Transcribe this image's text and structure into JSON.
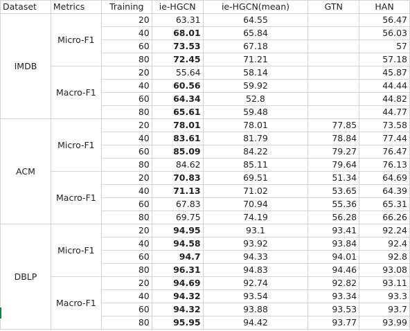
{
  "headers": [
    "Dataset",
    "Metrics",
    "Training",
    "ie-HGCN",
    "ie-HGCN(mean)",
    "GTN",
    "HAN"
  ],
  "groups": [
    {
      "dataset": "IMDB",
      "metrics": [
        {
          "name": "Micro-F1",
          "rows": [
            {
              "training": "20",
              "iehgcn": "63.31",
              "bold": false,
              "mean": "64.55",
              "gtn": "",
              "han": "56.47"
            },
            {
              "training": "40",
              "iehgcn": "68.01",
              "bold": true,
              "mean": "65.84",
              "gtn": "",
              "han": "56.03"
            },
            {
              "training": "60",
              "iehgcn": "73.53",
              "bold": true,
              "mean": "67.18",
              "gtn": "",
              "han": "57"
            },
            {
              "training": "80",
              "iehgcn": "72.45",
              "bold": true,
              "mean": "71.21",
              "gtn": "",
              "han": "57.18"
            }
          ]
        },
        {
          "name": "Macro-F1",
          "rows": [
            {
              "training": "20",
              "iehgcn": "55.64",
              "bold": false,
              "mean": "58.14",
              "gtn": "",
              "han": "45.87"
            },
            {
              "training": "40",
              "iehgcn": "60.56",
              "bold": true,
              "mean": "59.92",
              "gtn": "",
              "han": "44.44"
            },
            {
              "training": "60",
              "iehgcn": "64.34",
              "bold": true,
              "mean": "52.8",
              "gtn": "",
              "han": "44.82"
            },
            {
              "training": "80",
              "iehgcn": "65.61",
              "bold": true,
              "mean": "59.48",
              "gtn": "",
              "han": "44.77"
            }
          ]
        }
      ]
    },
    {
      "dataset": "ACM",
      "metrics": [
        {
          "name": "Micro-F1",
          "rows": [
            {
              "training": "20",
              "iehgcn": "78.01",
              "bold": true,
              "mean": "78.01",
              "gtn": "77.85",
              "han": "73.58"
            },
            {
              "training": "40",
              "iehgcn": "83.61",
              "bold": true,
              "mean": "81.79",
              "gtn": "78.84",
              "han": "77.44"
            },
            {
              "training": "60",
              "iehgcn": "85.09",
              "bold": true,
              "mean": "84.22",
              "gtn": "79.27",
              "han": "76.47"
            },
            {
              "training": "80",
              "iehgcn": "84.62",
              "bold": false,
              "mean": "85.11",
              "gtn": "79.64",
              "han": "76.13"
            }
          ]
        },
        {
          "name": "Macro-F1",
          "rows": [
            {
              "training": "20",
              "iehgcn": "70.83",
              "bold": true,
              "mean": "69.51",
              "gtn": "51.34",
              "han": "64.69"
            },
            {
              "training": "40",
              "iehgcn": "71.13",
              "bold": true,
              "mean": "71.02",
              "gtn": "53.65",
              "han": "64.39"
            },
            {
              "training": "60",
              "iehgcn": "67.83",
              "bold": false,
              "mean": "70.94",
              "gtn": "55.36",
              "han": "65.31"
            },
            {
              "training": "80",
              "iehgcn": "69.75",
              "bold": false,
              "mean": "74.19",
              "gtn": "56.28",
              "han": "66.26"
            }
          ]
        }
      ]
    },
    {
      "dataset": "DBLP",
      "metrics": [
        {
          "name": "Micro-F1",
          "rows": [
            {
              "training": "20",
              "iehgcn": "94.95",
              "bold": true,
              "mean": "93.1",
              "gtn": "93.41",
              "han": "92.24"
            },
            {
              "training": "40",
              "iehgcn": "94.58",
              "bold": true,
              "mean": "93.92",
              "gtn": "93.84",
              "han": "92.4"
            },
            {
              "training": "60",
              "iehgcn": "94.7",
              "bold": true,
              "mean": "94.33",
              "gtn": "94.01",
              "han": "92.8"
            },
            {
              "training": "80",
              "iehgcn": "96.31",
              "bold": true,
              "mean": "94.83",
              "gtn": "94.46",
              "han": "93.08"
            }
          ]
        },
        {
          "name": "Macro-F1",
          "rows": [
            {
              "training": "20",
              "iehgcn": "94.69",
              "bold": true,
              "mean": "92.74",
              "gtn": "92.82",
              "han": "93.11"
            },
            {
              "training": "40",
              "iehgcn": "94.32",
              "bold": true,
              "mean": "93.54",
              "gtn": "93.34",
              "han": "93.3"
            },
            {
              "training": "60",
              "iehgcn": "94.32",
              "bold": true,
              "mean": "93.88",
              "gtn": "93.53",
              "han": "93.7"
            },
            {
              "training": "80",
              "iehgcn": "95.95",
              "bold": true,
              "mean": "94.42",
              "gtn": "93.77",
              "han": "93.99"
            }
          ]
        }
      ]
    }
  ]
}
